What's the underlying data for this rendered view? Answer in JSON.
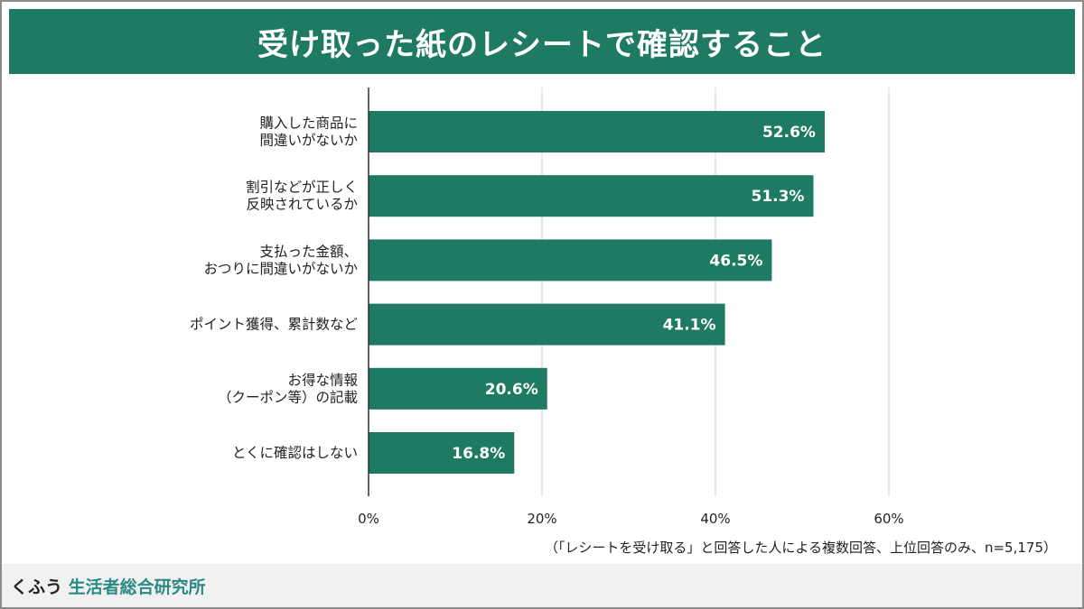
{
  "title": "受け取った紙のレシートで確認すること",
  "note": "（「レシートを受け取る」と回答した人による複数回答、上位回答のみ、n=5,175）",
  "brand": {
    "prefix": "くふう",
    "name": "生活者総合研究所"
  },
  "colors": {
    "bar": "#1e7a63",
    "title_bg": "#1e7a63",
    "brand": "#2a8a84"
  },
  "chart_data": {
    "type": "bar",
    "orientation": "horizontal",
    "categories": [
      [
        "購入した商品に",
        "間違いがないか"
      ],
      [
        "割引などが正しく",
        "反映されているか"
      ],
      [
        "支払った金額、",
        "おつりに間違いがないか"
      ],
      [
        "ポイント獲得、累計数など"
      ],
      [
        "お得な情報",
        "（クーポン等）の記載"
      ],
      [
        "とくに確認はしない"
      ]
    ],
    "values": [
      52.6,
      51.3,
      46.5,
      41.1,
      20.6,
      16.8
    ],
    "data_labels": [
      "52.6%",
      "51.3%",
      "46.5%",
      "41.1%",
      "20.6%",
      "16.8%"
    ],
    "xlim": [
      0,
      60
    ],
    "xticks": [
      0,
      20,
      40,
      60
    ],
    "xtick_labels": [
      "0%",
      "20%",
      "40%",
      "60%"
    ],
    "grid": true
  }
}
